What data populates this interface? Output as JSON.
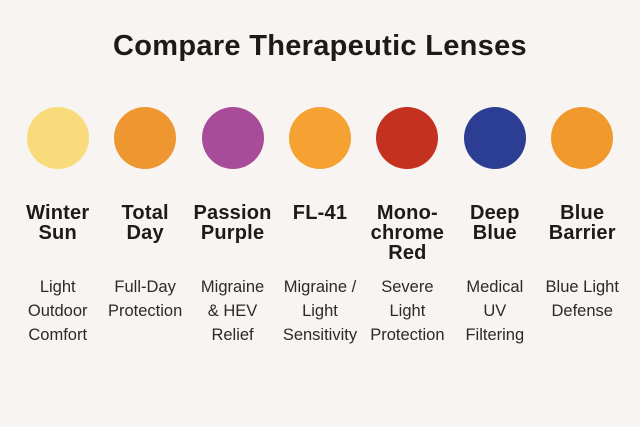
{
  "page": {
    "title": "Compare Therapeutic Lenses",
    "background_color": "#F7F4F1",
    "text_color": "#1C1B19"
  },
  "lenses": [
    {
      "id": "winter-sun",
      "name": "Winter Sun",
      "name_lines": [
        "Winter",
        "Sun"
      ],
      "benefit": "Light Outdoor Comfort",
      "benefit_lines": [
        "Light",
        "Outdoor",
        "Comfort"
      ],
      "color": "#F9DB7B"
    },
    {
      "id": "total-day",
      "name": "Total Day",
      "name_lines": [
        "Total",
        "Day"
      ],
      "benefit": "Full-Day Protection",
      "benefit_lines": [
        "Full-Day",
        "Protection"
      ],
      "color": "#EE9630"
    },
    {
      "id": "passion-purple",
      "name": "Passion Purple",
      "name_lines": [
        "Passion",
        "Purple"
      ],
      "benefit": "Migraine & HEV Relief",
      "benefit_lines": [
        "Migraine",
        "& HEV",
        "Relief"
      ],
      "color": "#A84C99"
    },
    {
      "id": "fl-41",
      "name": "FL-41",
      "name_lines": [
        "FL-41"
      ],
      "benefit": "Migraine / Light Sensitivity",
      "benefit_lines": [
        "Migraine /",
        "Light",
        "Sensitivity"
      ],
      "color": "#F6A233"
    },
    {
      "id": "monochrome-red",
      "name": "Monochrome Red",
      "name_lines": [
        "Mono-",
        "chrome",
        "Red"
      ],
      "benefit": "Severe Light Protection",
      "benefit_lines": [
        "Severe",
        "Light",
        "Protection"
      ],
      "color": "#C43120"
    },
    {
      "id": "deep-blue",
      "name": "Deep Blue",
      "name_lines": [
        "Deep",
        "Blue"
      ],
      "benefit": "Medical UV Filtering",
      "benefit_lines": [
        "Medical",
        "UV",
        "Filtering"
      ],
      "color": "#2C3E93"
    },
    {
      "id": "blue-barrier",
      "name": "Blue Barrier",
      "name_lines": [
        "Blue",
        "Barrier"
      ],
      "benefit": "Blue Light Defense",
      "benefit_lines": [
        "Blue Light",
        "Defense"
      ],
      "color": "#F09A2E"
    }
  ]
}
